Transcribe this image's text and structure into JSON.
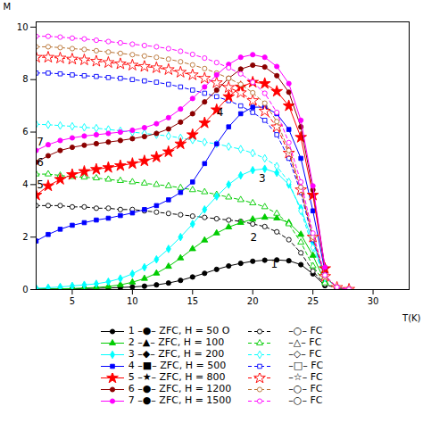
{
  "chart_data": {
    "type": "line",
    "xlabel": "T(K)",
    "ylabel": "M",
    "xlim": [
      2,
      33
    ],
    "ylim": [
      0,
      10.2
    ],
    "xticks": [
      5,
      10,
      15,
      20,
      25,
      30
    ],
    "yticks": [
      0,
      2,
      4,
      6,
      8,
      10
    ],
    "grid": false,
    "legend": "bottom",
    "series": [
      {
        "name": "1 –●– ZFC, H = 50 O",
        "color": "black",
        "marker": "circle",
        "line_style": "solid",
        "x": [
          2,
          3,
          4,
          5,
          6,
          7,
          8,
          9,
          10,
          11,
          12,
          13,
          14,
          15,
          16,
          17,
          18,
          19,
          20,
          21,
          22,
          23,
          24,
          25,
          26
        ],
        "values": [
          0.02,
          0.02,
          0.03,
          0.03,
          0.04,
          0.05,
          0.06,
          0.08,
          0.1,
          0.13,
          0.18,
          0.25,
          0.35,
          0.48,
          0.62,
          0.77,
          0.9,
          1.0,
          1.08,
          1.12,
          1.13,
          1.1,
          0.95,
          0.6,
          0.15
        ]
      },
      {
        "name": "    –○– FC",
        "color": "black",
        "marker": "circle-open",
        "line_style": "dashed",
        "x": [
          2,
          3,
          4,
          5,
          6,
          7,
          8,
          9,
          10,
          11,
          12,
          13,
          14,
          15,
          16,
          17,
          18,
          19,
          20,
          21,
          22,
          23,
          24,
          25,
          26,
          27,
          28
        ],
        "values": [
          3.2,
          3.2,
          3.2,
          3.15,
          3.15,
          3.1,
          3.1,
          3.05,
          3.05,
          3.0,
          2.95,
          2.9,
          2.85,
          2.8,
          2.75,
          2.7,
          2.65,
          2.6,
          2.5,
          2.4,
          2.2,
          1.9,
          1.4,
          0.7,
          0.2,
          0.05,
          0.01
        ]
      },
      {
        "name": "2 –▲– ZFC, H = 100",
        "color": "#00cc00",
        "marker": "triangle",
        "line_style": "solid",
        "x": [
          2,
          3,
          4,
          5,
          6,
          7,
          8,
          9,
          10,
          11,
          12,
          13,
          14,
          15,
          16,
          17,
          18,
          19,
          20,
          21,
          22,
          23,
          24,
          25,
          26
        ],
        "values": [
          0.02,
          0.02,
          0.03,
          0.04,
          0.06,
          0.08,
          0.12,
          0.18,
          0.28,
          0.42,
          0.62,
          0.88,
          1.2,
          1.55,
          1.88,
          2.15,
          2.38,
          2.55,
          2.68,
          2.75,
          2.72,
          2.55,
          2.1,
          1.3,
          0.3
        ]
      },
      {
        "name": "    –△– FC",
        "color": "#00cc00",
        "marker": "triangle-open",
        "line_style": "dashed",
        "x": [
          2,
          3,
          4,
          5,
          6,
          7,
          8,
          9,
          10,
          11,
          12,
          13,
          14,
          15,
          16,
          17,
          18,
          19,
          20,
          21,
          22,
          23,
          24,
          25,
          26,
          27,
          28
        ],
        "values": [
          4.4,
          4.4,
          4.35,
          4.3,
          4.28,
          4.25,
          4.2,
          4.15,
          4.1,
          4.05,
          4.0,
          3.95,
          3.88,
          3.8,
          3.72,
          3.62,
          3.52,
          3.42,
          3.3,
          3.15,
          2.9,
          2.5,
          1.8,
          0.9,
          0.25,
          0.05,
          0.01
        ]
      },
      {
        "name": "3 –◆– ZFC, H = 200",
        "color": "cyan",
        "marker": "diamond",
        "line_style": "solid",
        "x": [
          2,
          3,
          4,
          5,
          6,
          7,
          8,
          9,
          10,
          11,
          12,
          13,
          14,
          15,
          16,
          17,
          18,
          19,
          20,
          21,
          22,
          23,
          24,
          25,
          26
        ],
        "values": [
          0.05,
          0.07,
          0.1,
          0.14,
          0.18,
          0.22,
          0.3,
          0.42,
          0.6,
          0.85,
          1.15,
          1.55,
          2.0,
          2.5,
          3.05,
          3.55,
          4.0,
          4.35,
          4.55,
          4.6,
          4.45,
          4.0,
          3.1,
          1.8,
          0.45
        ]
      },
      {
        "name": "    –◇– FC",
        "color": "cyan",
        "marker": "diamond-open",
        "line_style": "dashed",
        "x": [
          2,
          3,
          4,
          5,
          6,
          7,
          8,
          9,
          10,
          11,
          12,
          13,
          14,
          15,
          16,
          17,
          18,
          19,
          20,
          21,
          22,
          23,
          24,
          25,
          26,
          27,
          28
        ],
        "values": [
          6.3,
          6.28,
          6.25,
          6.22,
          6.18,
          6.15,
          6.1,
          6.05,
          6.0,
          5.95,
          5.9,
          5.85,
          5.78,
          5.7,
          5.62,
          5.55,
          5.45,
          5.35,
          5.2,
          5.0,
          4.7,
          4.1,
          3.0,
          1.6,
          0.45,
          0.08,
          0.01
        ]
      },
      {
        "name": "4 –■– ZFC, H = 500",
        "color": "blue",
        "marker": "square",
        "line_style": "solid",
        "x": [
          2,
          3,
          4,
          5,
          6,
          7,
          8,
          9,
          10,
          11,
          12,
          13,
          14,
          15,
          16,
          17,
          18,
          19,
          20,
          21,
          22,
          23,
          24,
          25,
          26
        ],
        "values": [
          1.85,
          2.1,
          2.3,
          2.45,
          2.55,
          2.65,
          2.72,
          2.82,
          2.92,
          3.05,
          3.2,
          3.42,
          3.7,
          4.1,
          4.8,
          5.55,
          6.2,
          6.7,
          6.95,
          6.95,
          6.7,
          6.1,
          5.0,
          3.0,
          0.7
        ]
      },
      {
        "name": "    –□– FC",
        "color": "blue",
        "marker": "square-open",
        "line_style": "dashed",
        "x": [
          2,
          3,
          4,
          5,
          6,
          7,
          8,
          9,
          10,
          11,
          12,
          13,
          14,
          15,
          16,
          17,
          18,
          19,
          20,
          21,
          22,
          23,
          24,
          25,
          26,
          27,
          28
        ],
        "values": [
          8.25,
          8.25,
          8.22,
          8.18,
          8.15,
          8.12,
          8.08,
          8.05,
          8.0,
          7.95,
          7.9,
          7.82,
          7.72,
          7.6,
          7.48,
          7.35,
          7.2,
          7.0,
          6.75,
          6.45,
          5.9,
          5.0,
          3.7,
          1.9,
          0.5,
          0.08,
          0.01
        ]
      },
      {
        "name": "5 –★– ZFC, H = 800",
        "color": "red",
        "marker": "star",
        "line_style": "solid",
        "x": [
          2,
          3,
          4,
          5,
          6,
          7,
          8,
          9,
          10,
          11,
          12,
          13,
          14,
          15,
          16,
          17,
          18,
          19,
          20,
          21,
          22,
          23,
          24,
          25,
          26
        ],
        "values": [
          3.6,
          3.95,
          4.2,
          4.38,
          4.5,
          4.58,
          4.65,
          4.72,
          4.8,
          4.9,
          5.05,
          5.25,
          5.55,
          5.9,
          6.35,
          6.85,
          7.35,
          7.72,
          7.9,
          7.85,
          7.55,
          7.0,
          5.8,
          3.6,
          0.8
        ]
      },
      {
        "name": "    –☆– FC",
        "color": "red",
        "marker": "star-open",
        "line_style": "dashed",
        "x": [
          2,
          3,
          4,
          5,
          6,
          7,
          8,
          9,
          10,
          11,
          12,
          13,
          14,
          15,
          16,
          17,
          18,
          19,
          20,
          21,
          22,
          23,
          24,
          25,
          26,
          27,
          28
        ],
        "values": [
          8.85,
          8.85,
          8.82,
          8.78,
          8.75,
          8.7,
          8.65,
          8.6,
          8.55,
          8.5,
          8.45,
          8.38,
          8.28,
          8.18,
          8.05,
          7.88,
          7.7,
          7.5,
          7.2,
          6.8,
          6.2,
          5.2,
          3.8,
          2.0,
          0.5,
          0.08,
          0.01
        ]
      },
      {
        "name": "6 –●– ZFC, H = 1200",
        "color": "#8B0000",
        "marker": "circle",
        "line_style": "solid",
        "x": [
          2,
          3,
          4,
          5,
          6,
          7,
          8,
          9,
          10,
          11,
          12,
          13,
          14,
          15,
          16,
          17,
          18,
          19,
          20,
          21,
          22,
          23,
          24,
          25,
          26
        ],
        "values": [
          4.85,
          5.1,
          5.3,
          5.42,
          5.5,
          5.56,
          5.62,
          5.68,
          5.75,
          5.83,
          5.95,
          6.12,
          6.38,
          6.7,
          7.15,
          7.6,
          8.05,
          8.4,
          8.55,
          8.48,
          8.15,
          7.52,
          6.2,
          3.8,
          0.85
        ]
      },
      {
        "name": "    –○– FC",
        "color": "#b87333",
        "marker": "circle-open",
        "line_style": "dashed",
        "x": [
          2,
          3,
          4,
          5,
          6,
          7,
          8,
          9,
          10,
          11,
          12,
          13,
          14,
          15,
          16,
          17,
          18,
          19,
          20,
          21,
          22,
          23,
          24,
          25,
          26,
          27,
          28
        ],
        "values": [
          9.25,
          9.25,
          9.22,
          9.18,
          9.15,
          9.1,
          9.05,
          9.0,
          8.95,
          8.9,
          8.85,
          8.78,
          8.68,
          8.56,
          8.42,
          8.25,
          8.05,
          7.82,
          7.5,
          7.1,
          6.4,
          5.3,
          3.9,
          2.0,
          0.5,
          0.08,
          0.01
        ]
      },
      {
        "name": "7 –●– ZFC, H = 1500",
        "color": "magenta",
        "marker": "circle",
        "line_style": "solid",
        "x": [
          2,
          3,
          4,
          5,
          6,
          7,
          8,
          9,
          10,
          11,
          12,
          13,
          14,
          15,
          16,
          17,
          18,
          19,
          20,
          21,
          22,
          23,
          24,
          25,
          26
        ],
        "values": [
          5.3,
          5.52,
          5.68,
          5.78,
          5.85,
          5.9,
          5.95,
          6.0,
          6.07,
          6.17,
          6.32,
          6.55,
          6.88,
          7.28,
          7.72,
          8.18,
          8.58,
          8.85,
          8.95,
          8.85,
          8.5,
          7.85,
          6.45,
          3.95,
          0.85
        ]
      },
      {
        "name": "    –○– FC",
        "color": "magenta",
        "marker": "circle-open",
        "line_style": "dashed",
        "x": [
          2,
          3,
          4,
          5,
          6,
          7,
          8,
          9,
          10,
          11,
          12,
          13,
          14,
          15,
          16,
          17,
          18,
          19,
          20,
          21,
          22,
          23,
          24,
          25,
          26,
          27,
          28
        ],
        "values": [
          9.65,
          9.65,
          9.62,
          9.58,
          9.55,
          9.5,
          9.45,
          9.4,
          9.35,
          9.3,
          9.25,
          9.18,
          9.08,
          8.96,
          8.82,
          8.65,
          8.45,
          8.22,
          7.9,
          7.48,
          6.75,
          5.6,
          4.1,
          2.15,
          0.55,
          0.09,
          0.01
        ]
      }
    ],
    "annotations": [
      {
        "text": "1",
        "x": 21.5,
        "y": 0.85
      },
      {
        "text": "2",
        "x": 19.8,
        "y": 1.85
      },
      {
        "text": "3",
        "x": 20.5,
        "y": 4.1
      },
      {
        "text": "4",
        "x": 17.0,
        "y": 6.6
      },
      {
        "text": "5",
        "x": 2.05,
        "y": 3.85
      },
      {
        "text": "6",
        "x": 2.05,
        "y": 4.72
      },
      {
        "text": "7",
        "x": 2.05,
        "y": 5.5
      }
    ]
  }
}
